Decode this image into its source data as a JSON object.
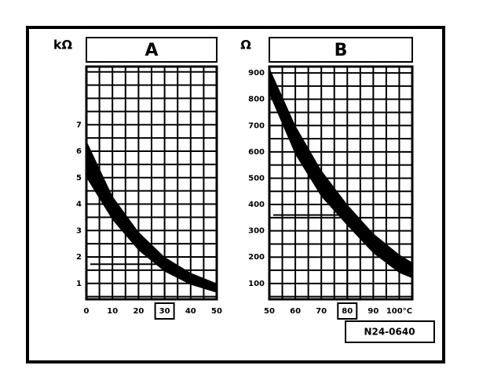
{
  "chart_data": [
    {
      "type": "band",
      "title": "A",
      "y_label": "kΩ",
      "x": [
        0,
        10,
        20,
        30,
        40,
        50
      ],
      "high": [
        6.4,
        4.3,
        2.95,
        2.0,
        1.4,
        1.0
      ],
      "low": [
        5.0,
        3.4,
        2.25,
        1.45,
        0.95,
        0.65
      ],
      "xlim": [
        0,
        50
      ],
      "ylim": [
        0.4,
        9.2
      ],
      "xticks": [
        0,
        10,
        20,
        30,
        40,
        50
      ],
      "yticks": [
        1,
        2,
        3,
        4,
        5,
        6,
        7
      ],
      "highlight_x": 30,
      "grid": true,
      "color": "#000000"
    },
    {
      "type": "band",
      "title": "B",
      "y_label": "Ω",
      "x": [
        50,
        60,
        70,
        80,
        90,
        100,
        105
      ],
      "high": [
        920,
        700,
        530,
        400,
        290,
        210,
        180
      ],
      "low": [
        820,
        590,
        430,
        320,
        215,
        140,
        120
      ],
      "xlim": [
        50,
        105
      ],
      "ylim": [
        40,
        924
      ],
      "xticks": [
        50,
        60,
        70,
        80,
        90,
        {
          "value": 100,
          "label": "100°C"
        }
      ],
      "yticks": [
        100,
        200,
        300,
        400,
        500,
        600,
        700,
        800,
        900
      ],
      "highlight_x": 80,
      "grid": true,
      "color": "#000000"
    }
  ],
  "figure_label": "N24-0640"
}
